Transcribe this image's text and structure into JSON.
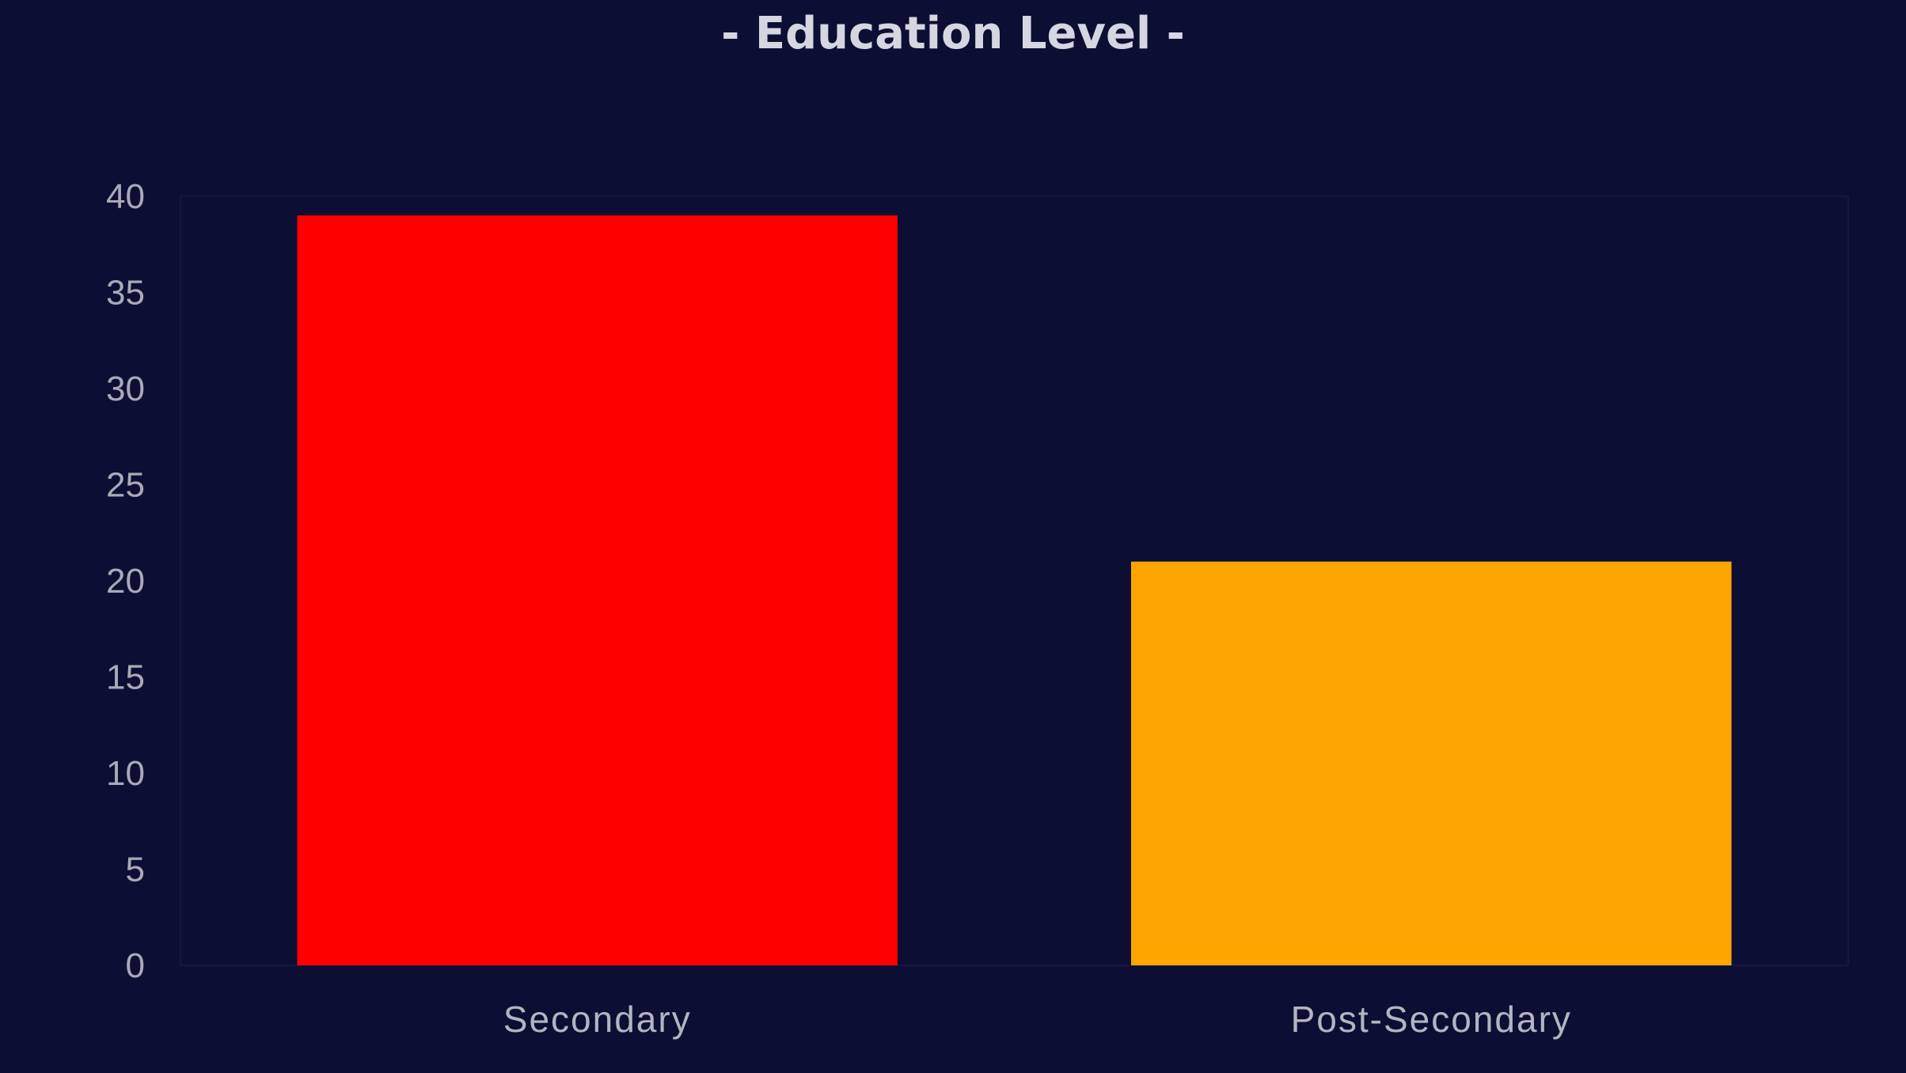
{
  "chart_data": {
    "type": "bar",
    "title": "- Education Level -",
    "categories": [
      "Secondary",
      "Post-Secondary"
    ],
    "values": [
      39,
      21
    ],
    "colors": [
      "#ff0000",
      "#ffa500"
    ],
    "xlabel": "",
    "ylabel": "",
    "ylim": [
      0,
      40
    ],
    "yticks": [
      "0",
      "5",
      "10",
      "15",
      "20",
      "25",
      "30",
      "35",
      "40"
    ],
    "grid": false,
    "legend": "none",
    "background": "#0c0f33"
  }
}
